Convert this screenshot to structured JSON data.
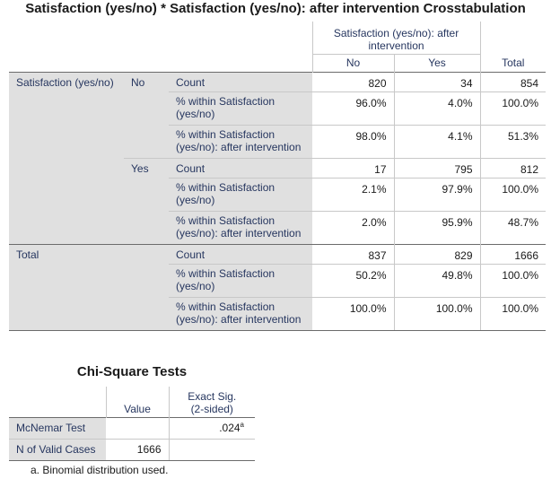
{
  "crosstab": {
    "title": "Satisfaction (yes/no) * Satisfaction (yes/no): after intervention Crosstabulation",
    "col_group_header": "Satisfaction (yes/no): after intervention",
    "col_headers": [
      "No",
      "Yes",
      "Total"
    ],
    "row_variable": "Satisfaction (yes/no)",
    "total_label": "Total",
    "stat_labels": {
      "count": "Count",
      "within_row": "% within Satisfaction (yes/no)",
      "within_col": "% within Satisfaction (yes/no): after intervention"
    },
    "groups": [
      {
        "label": "No",
        "count": [
          "820",
          "34",
          "854"
        ],
        "within_row": [
          "96.0%",
          "4.0%",
          "100.0%"
        ],
        "within_col": [
          "98.0%",
          "4.1%",
          "51.3%"
        ]
      },
      {
        "label": "Yes",
        "count": [
          "17",
          "795",
          "812"
        ],
        "within_row": [
          "2.1%",
          "97.9%",
          "100.0%"
        ],
        "within_col": [
          "2.0%",
          "95.9%",
          "48.7%"
        ]
      },
      {
        "label": "",
        "count": [
          "837",
          "829",
          "1666"
        ],
        "within_row": [
          "50.2%",
          "49.8%",
          "100.0%"
        ],
        "within_col": [
          "100.0%",
          "100.0%",
          "100.0%"
        ]
      }
    ]
  },
  "chisq": {
    "title": "Chi-Square Tests",
    "col_headers": [
      "Value",
      "Exact Sig. (2-sided)"
    ],
    "rows": [
      {
        "label": "McNemar Test",
        "value": "",
        "sig": ".024",
        "sig_sup": "a"
      },
      {
        "label": "N of Valid Cases",
        "value": "1666",
        "sig": ""
      }
    ],
    "footnote": "a. Binomial distribution used."
  },
  "colors": {
    "label_text": "#26365f",
    "label_bg": "#e0e0e0",
    "border_dark": "#6b6b6b",
    "border_light": "#c8c8c8"
  }
}
